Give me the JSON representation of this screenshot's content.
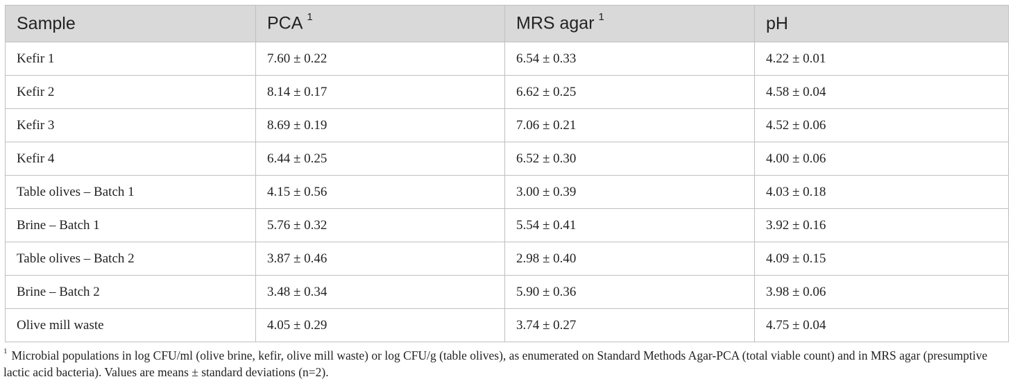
{
  "table": {
    "headers": [
      {
        "label": "Sample",
        "sup": ""
      },
      {
        "label": "PCA",
        "sup": "1"
      },
      {
        "label": "MRS agar",
        "sup": "1"
      },
      {
        "label": "pH",
        "sup": ""
      }
    ],
    "rows": [
      [
        "Kefir 1",
        "7.60 ± 0.22",
        "6.54 ± 0.33",
        "4.22 ± 0.01"
      ],
      [
        "Kefir 2",
        "8.14 ± 0.17",
        "6.62 ± 0.25",
        "4.58 ± 0.04"
      ],
      [
        "Kefir 3",
        "8.69 ± 0.19",
        "7.06 ± 0.21",
        "4.52 ± 0.06"
      ],
      [
        "Kefir 4",
        "6.44 ± 0.25",
        "6.52 ± 0.30",
        "4.00 ± 0.06"
      ],
      [
        "Table olives – Batch 1",
        "4.15 ± 0.56",
        "3.00 ± 0.39",
        "4.03 ± 0.18"
      ],
      [
        "Brine – Batch 1",
        "5.76 ± 0.32",
        "5.54 ± 0.41",
        "3.92 ± 0.16"
      ],
      [
        "Table olives – Batch 2",
        "3.87 ± 0.46",
        "2.98 ± 0.40",
        "4.09 ± 0.15"
      ],
      [
        "Brine – Batch 2",
        "3.48 ± 0.34",
        "5.90 ± 0.36",
        "3.98 ± 0.06"
      ],
      [
        "Olive mill waste",
        "4.05 ± 0.29",
        "3.74 ± 0.27",
        "4.75 ± 0.04"
      ]
    ]
  },
  "footnote": {
    "marker": "1",
    "text": "Microbial populations in log CFU/ml (olive brine, kefir, olive mill waste) or log CFU/g (table olives), as enumerated on Standard Methods Agar-PCA (total viable count) and in MRS agar (presumptive lactic acid bacteria). Values are means ± standard deviations (n=2)."
  },
  "colors": {
    "header_bg": "#d9d9d9",
    "border": "#bfbfbf",
    "text": "#222222"
  }
}
